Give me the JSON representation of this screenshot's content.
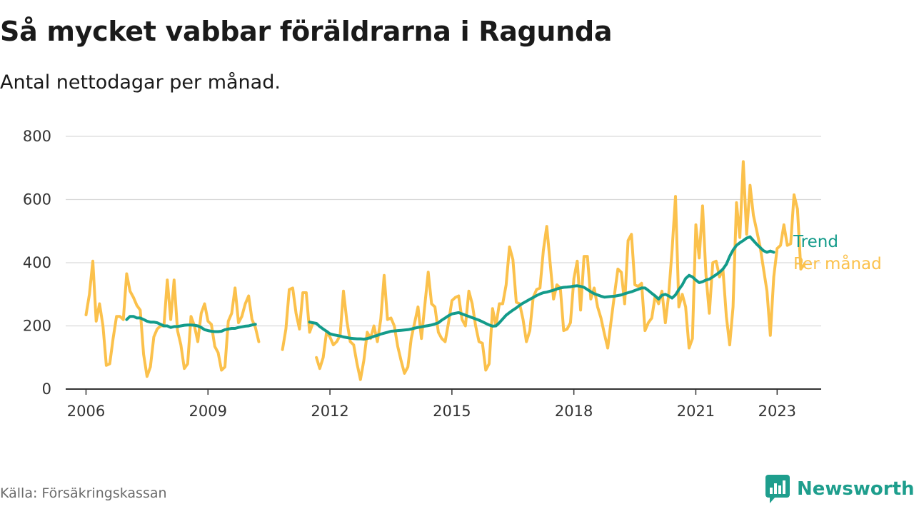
{
  "header": {
    "title": "Så mycket vabbar föräldrarna i Ragunda",
    "subtitle": "Antal nettodagar per månad."
  },
  "footer": {
    "source": "Källa: Försäkringskassan",
    "brand": "Newsworthy",
    "brand_icon": "bar-chart-speech-bubble-icon"
  },
  "colors": {
    "monthly": "#fbc14c",
    "trend": "#139b8a",
    "grid": "#d9d9d9",
    "axis": "#333333",
    "brand": "#1e9e8d"
  },
  "chart_data": {
    "type": "line",
    "title": "Så mycket vabbar föräldrarna i Ragunda",
    "subtitle": "Antal nettodagar per månad.",
    "xlabel": "",
    "ylabel": "",
    "xlim": [
      "2005-07",
      "2024-02"
    ],
    "ylim": [
      0,
      800
    ],
    "yticks": [
      0,
      200,
      400,
      600,
      800
    ],
    "xticks": [
      "2006",
      "2009",
      "2012",
      "2015",
      "2018",
      "2021",
      "2023"
    ],
    "grid": true,
    "legend": "inline-right",
    "series": [
      {
        "name": "Per månad",
        "color": "#fbc14c",
        "segments": [
          {
            "start": "2006-01",
            "values": [
              235,
              300,
              405,
              215,
              270,
              200,
              75,
              80,
              160,
              230,
              230,
              220,
              365,
              310,
              290,
              265,
              250,
              110,
              40,
              70,
              165,
              190,
              200,
              200,
              345,
              220,
              345,
              185,
              140,
              65,
              80,
              230,
              200,
              150,
              240,
              270,
              215,
              205,
              135,
              115,
              60,
              70,
              215,
              240,
              320,
              210,
              230,
              270,
              295,
              220,
              195,
              150
            ]
          },
          {
            "start": "2010-11",
            "values": [
              125,
              190,
              315,
              320,
              240,
              190,
              305,
              305,
              180,
              210
            ]
          },
          {
            "start": "2011-09",
            "values": [
              100,
              65,
              100,
              180,
              165,
              140,
              150,
              170,
              310,
              215,
              150,
              140,
              80,
              30,
              90,
              180,
              160,
              200,
              150,
              220,
              360,
              220,
              225,
              200,
              135,
              90,
              50,
              70,
              160,
              210,
              260,
              160,
              265,
              370,
              270,
              260,
              180,
              160,
              150,
              210,
              280,
              290,
              295,
              220,
              200,
              310,
              270,
              200,
              150,
              145,
              60,
              80,
              255,
              200,
              270,
              270,
              330,
              450,
              410,
              275,
              270,
              220,
              150,
              185,
              290,
              315,
              320,
              440,
              515,
              400,
              285,
              330,
              320,
              185,
              190,
              210,
              350,
              405,
              250,
              420,
              420,
              285,
              320,
              260,
              225,
              175,
              130,
              215,
              300,
              380,
              370,
              270,
              470,
              490,
              330,
              325,
              335,
              185,
              210,
              225,
              295,
              270,
              310,
              210,
              300,
              440,
              610,
              260,
              300,
              260,
              130,
              160,
              520,
              415,
              580,
              360,
              240,
              400,
              405,
              355,
              380,
              230,
              140,
              260,
              590,
              480,
              720,
              490,
              645,
              550,
              500,
              450,
              380,
              310,
              170,
              355,
              445,
              455,
              520,
              455,
              460,
              615,
              570,
              380,
              395
            ]
          }
        ]
      },
      {
        "name": "Trend",
        "color": "#139b8a",
        "segments": [
          {
            "start": "2007-01",
            "values": [
              220,
              230,
              230,
              225,
              225,
              220,
              215,
              212,
              212,
              210,
              205,
              200,
              200,
              195,
              198,
              198,
              200,
              202,
              203,
              203,
              202,
              200,
              195,
              188,
              185,
              183,
              182,
              182,
              183,
              188,
              190,
              192,
              192,
              195,
              197,
              199,
              200,
              203,
              205
            ]
          },
          {
            "start": "2011-07",
            "values": [
              212,
              210,
              208,
              198,
              190,
              183,
              175,
              172,
              170,
              168,
              165,
              163,
              161,
              160,
              159,
              159,
              158,
              160,
              163,
              167,
              170,
              174,
              177,
              180,
              183,
              184,
              185,
              186,
              187,
              188,
              190,
              193,
              195,
              197,
              199,
              201,
              203,
              206,
              210,
              218,
              225,
              232,
              238,
              240,
              242,
              238,
              234,
              230,
              226,
              222,
              218,
              213,
              208,
              203,
              199,
              200,
              210,
              222,
              234,
              242,
              250,
              257,
              265,
              272,
              278,
              284,
              290,
              296,
              301,
              305,
              307,
              310,
              313,
              317,
              320,
              322,
              323,
              324,
              326,
              327,
              325,
              322,
              315,
              308,
              302,
              298,
              294,
              291,
              292,
              293,
              294,
              296,
              298,
              302,
              305,
              308,
              312,
              316,
              320,
              320,
              312,
              303,
              295,
              285,
              297,
              300,
              295,
              288,
              298,
              315,
              330,
              350,
              360,
              355,
              345,
              337,
              340,
              345,
              348,
              355,
              362,
              370,
              380,
              395,
              420,
              440,
              455,
              463,
              470,
              478,
              482,
              470,
              458,
              448,
              438,
              433,
              437,
              433
            ]
          }
        ]
      }
    ]
  }
}
